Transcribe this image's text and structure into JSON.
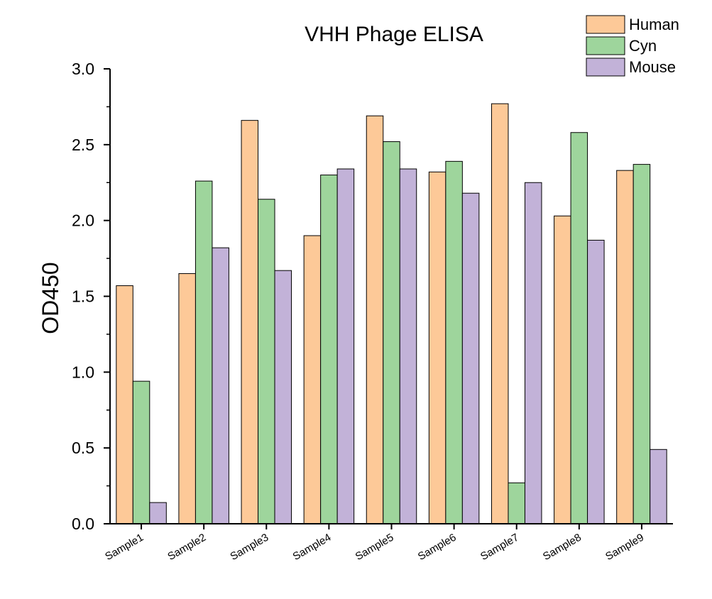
{
  "chart_data": {
    "type": "bar",
    "title": "VHH Phage ELISA",
    "xlabel": "",
    "ylabel": "OD450",
    "ylim": [
      0,
      3.0
    ],
    "yticks": [
      "0.0",
      "0.5",
      "1.0",
      "1.5",
      "2.0",
      "2.5",
      "3.0"
    ],
    "categories": [
      "Sample1",
      "Sample2",
      "Sample3",
      "Sample4",
      "Sample5",
      "Sample6",
      "Sample7",
      "Sample8",
      "Sample9"
    ],
    "legend_position": "top-right",
    "grid": false,
    "series": [
      {
        "name": "Human",
        "color": "#FDC998",
        "values": [
          1.57,
          1.65,
          2.66,
          1.9,
          2.69,
          2.32,
          2.77,
          2.03,
          2.33
        ]
      },
      {
        "name": "Cyn",
        "color": "#9ED59C",
        "values": [
          0.94,
          2.26,
          2.14,
          2.3,
          2.52,
          2.39,
          0.27,
          2.58,
          2.37
        ]
      },
      {
        "name": "Mouse",
        "color": "#C2B2D8",
        "values": [
          0.14,
          1.82,
          1.67,
          2.34,
          2.34,
          2.18,
          2.25,
          1.87,
          0.49
        ]
      }
    ]
  }
}
